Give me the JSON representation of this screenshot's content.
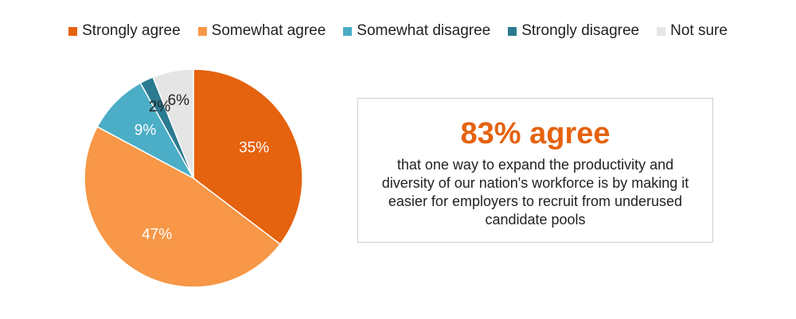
{
  "chart_data": {
    "type": "pie",
    "title": "",
    "start_angle_deg": 0,
    "direction": "clockwise",
    "legend_position": "top",
    "slices": [
      {
        "name": "Strongly agree",
        "value": 35,
        "label": "35%",
        "color": "#E5620E",
        "label_color": "#ffffff"
      },
      {
        "name": "Somewhat agree",
        "value": 47,
        "label": "47%",
        "color": "#F79747",
        "label_color": "#ffffff"
      },
      {
        "name": "Somewhat disagree",
        "value": 9,
        "label": "9%",
        "color": "#4BADC6",
        "label_color": "#ffffff"
      },
      {
        "name": "Strongly disagree",
        "value": 2,
        "label": "2%",
        "color": "#2B7A90",
        "label_color": "#222222"
      },
      {
        "name": "Not sure",
        "value": 6,
        "label": "6%",
        "color": "#E5E5E5",
        "label_color": "#222222"
      }
    ]
  },
  "callout": {
    "headline": "83% agree",
    "text": "that one way to expand the productivity and diversity of our nation's workforce is by making it easier for employers to recruit from underused candidate pools",
    "headline_color": "#E5620E"
  }
}
